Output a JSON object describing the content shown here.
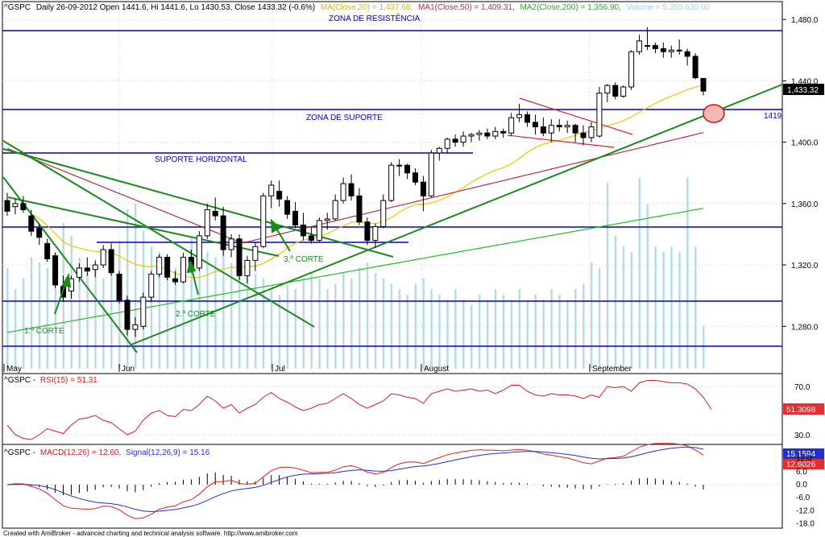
{
  "header": {
    "ticker": "^GSPC",
    "info": "Daily 26-09-2012 Open 1441.6, Hi 1441.6, Lo 1430.53, Close 1433.32 (-0.6%)",
    "ma20": "MA(Close,20) = 1,437.68,",
    "ma50": "MA1(Close,50) = 1,409.31,",
    "ma200": "MA2(Close,200) = 1,356.90,",
    "volume": "Volume = 5,355,620.00"
  },
  "annotations": {
    "resistance": "ZONA DE RESISTÊNCIA",
    "support": "ZONA DE SUPORTE",
    "horizontal_support": "SUPORTE HORIZONTAL",
    "cut1": "1.º CORTE",
    "cut2": "2.º CORTE",
    "cut3": "3.º CORTE",
    "level_1419": "1419"
  },
  "price_tag": "1,433.32",
  "rsi": {
    "title_ticker": "^GSPC -",
    "title_ind": "RSI(15) = 51.31",
    "tag": "51.3098",
    "ticks": [
      "70.0",
      "30.0"
    ]
  },
  "macd": {
    "title_ticker": "^GSPC -",
    "title_macd": "MACD(12,26) = 12.60,",
    "title_signal": "Signal(12,26,9) = 15.16",
    "tag_signal": "15.1594",
    "tag_macd": "12.6026",
    "ticks": [
      "12.0",
      "6.0",
      "0.0",
      "-6.0",
      "-12.0",
      "-18.0"
    ]
  },
  "footer": "Created with AmiBroker - advanced charting and technical analysis software. http://www.amibroker.com",
  "colors": {
    "up": "#ffffff",
    "down": "#000000",
    "ma20": "#e6c800",
    "ma50": "#b03040",
    "ma200": "#22c022",
    "volume": "#b6dcea",
    "level": "#0000cc",
    "trend": "#1a8a1a",
    "wedge": "#e02020",
    "macd": "#e02020",
    "signal": "#2030d0",
    "rsi": "#d02020"
  },
  "chart_data": {
    "type": "candlestick",
    "months": [
      "May",
      "Jun",
      "Jul",
      "August",
      "September"
    ],
    "y_ticks": [
      "1,480.0",
      "1,440.0",
      "1,400.0",
      "1,360.0",
      "1,320.0",
      "1,280.0"
    ],
    "ylim": [
      1262,
      1492
    ],
    "levels": [
      1474,
      1419,
      1391,
      1342,
      1335,
      1297,
      1263
    ],
    "candles": [
      {
        "o": 1362,
        "h": 1367,
        "l": 1352,
        "c": 1355
      },
      {
        "o": 1358,
        "h": 1363,
        "l": 1353,
        "c": 1360
      },
      {
        "o": 1360,
        "h": 1365,
        "l": 1354,
        "c": 1356
      },
      {
        "o": 1352,
        "h": 1356,
        "l": 1339,
        "c": 1342
      },
      {
        "o": 1344,
        "h": 1347,
        "l": 1333,
        "c": 1338
      },
      {
        "o": 1334,
        "h": 1337,
        "l": 1322,
        "c": 1324
      },
      {
        "o": 1326,
        "h": 1328,
        "l": 1305,
        "c": 1307
      },
      {
        "o": 1306,
        "h": 1313,
        "l": 1296,
        "c": 1299
      },
      {
        "o": 1303,
        "h": 1313,
        "l": 1298,
        "c": 1311
      },
      {
        "o": 1312,
        "h": 1321,
        "l": 1309,
        "c": 1318
      },
      {
        "o": 1318,
        "h": 1325,
        "l": 1313,
        "c": 1316
      },
      {
        "o": 1317,
        "h": 1323,
        "l": 1312,
        "c": 1320
      },
      {
        "o": 1320,
        "h": 1333,
        "l": 1318,
        "c": 1330
      },
      {
        "o": 1330,
        "h": 1334,
        "l": 1313,
        "c": 1315
      },
      {
        "o": 1314,
        "h": 1316,
        "l": 1295,
        "c": 1297
      },
      {
        "o": 1297,
        "h": 1300,
        "l": 1274,
        "c": 1278
      },
      {
        "o": 1278,
        "h": 1286,
        "l": 1273,
        "c": 1281
      },
      {
        "o": 1280,
        "h": 1302,
        "l": 1278,
        "c": 1299
      },
      {
        "o": 1299,
        "h": 1316,
        "l": 1296,
        "c": 1314
      },
      {
        "o": 1314,
        "h": 1327,
        "l": 1312,
        "c": 1325
      },
      {
        "o": 1325,
        "h": 1327,
        "l": 1310,
        "c": 1312
      },
      {
        "o": 1311,
        "h": 1316,
        "l": 1307,
        "c": 1309
      },
      {
        "o": 1309,
        "h": 1328,
        "l": 1308,
        "c": 1325
      },
      {
        "o": 1325,
        "h": 1330,
        "l": 1315,
        "c": 1318
      },
      {
        "o": 1318,
        "h": 1342,
        "l": 1316,
        "c": 1339
      },
      {
        "o": 1339,
        "h": 1360,
        "l": 1337,
        "c": 1356
      },
      {
        "o": 1355,
        "h": 1364,
        "l": 1349,
        "c": 1352
      },
      {
        "o": 1352,
        "h": 1358,
        "l": 1326,
        "c": 1330
      },
      {
        "o": 1330,
        "h": 1340,
        "l": 1325,
        "c": 1337
      },
      {
        "o": 1337,
        "h": 1340,
        "l": 1310,
        "c": 1313
      },
      {
        "o": 1313,
        "h": 1326,
        "l": 1308,
        "c": 1323
      },
      {
        "o": 1323,
        "h": 1335,
        "l": 1316,
        "c": 1332
      },
      {
        "o": 1332,
        "h": 1367,
        "l": 1331,
        "c": 1365
      },
      {
        "o": 1365,
        "h": 1375,
        "l": 1357,
        "c": 1372
      },
      {
        "o": 1368,
        "h": 1375,
        "l": 1358,
        "c": 1363
      },
      {
        "o": 1362,
        "h": 1365,
        "l": 1350,
        "c": 1353
      },
      {
        "o": 1355,
        "h": 1361,
        "l": 1344,
        "c": 1346
      },
      {
        "o": 1346,
        "h": 1354,
        "l": 1336,
        "c": 1339
      },
      {
        "o": 1339,
        "h": 1345,
        "l": 1334,
        "c": 1336
      },
      {
        "o": 1336,
        "h": 1351,
        "l": 1335,
        "c": 1349
      },
      {
        "o": 1349,
        "h": 1354,
        "l": 1343,
        "c": 1350
      },
      {
        "o": 1350,
        "h": 1366,
        "l": 1349,
        "c": 1362
      },
      {
        "o": 1362,
        "h": 1377,
        "l": 1360,
        "c": 1373
      },
      {
        "o": 1373,
        "h": 1379,
        "l": 1362,
        "c": 1365
      },
      {
        "o": 1365,
        "h": 1370,
        "l": 1346,
        "c": 1348
      },
      {
        "o": 1348,
        "h": 1351,
        "l": 1333,
        "c": 1336
      },
      {
        "o": 1336,
        "h": 1347,
        "l": 1331,
        "c": 1345
      },
      {
        "o": 1345,
        "h": 1366,
        "l": 1344,
        "c": 1362
      },
      {
        "o": 1362,
        "h": 1387,
        "l": 1361,
        "c": 1385
      },
      {
        "o": 1385,
        "h": 1389,
        "l": 1378,
        "c": 1385
      },
      {
        "o": 1385,
        "h": 1386,
        "l": 1376,
        "c": 1380
      },
      {
        "o": 1380,
        "h": 1383,
        "l": 1372,
        "c": 1374
      },
      {
        "o": 1374,
        "h": 1378,
        "l": 1355,
        "c": 1365
      },
      {
        "o": 1365,
        "h": 1395,
        "l": 1364,
        "c": 1393
      },
      {
        "o": 1393,
        "h": 1397,
        "l": 1388,
        "c": 1396
      },
      {
        "o": 1396,
        "h": 1403,
        "l": 1393,
        "c": 1402
      },
      {
        "o": 1402,
        "h": 1405,
        "l": 1397,
        "c": 1400
      },
      {
        "o": 1400,
        "h": 1407,
        "l": 1397,
        "c": 1404
      },
      {
        "o": 1404,
        "h": 1406,
        "l": 1400,
        "c": 1405
      },
      {
        "o": 1405,
        "h": 1408,
        "l": 1401,
        "c": 1406
      },
      {
        "o": 1406,
        "h": 1409,
        "l": 1402,
        "c": 1404
      },
      {
        "o": 1404,
        "h": 1410,
        "l": 1402,
        "c": 1407
      },
      {
        "o": 1407,
        "h": 1409,
        "l": 1403,
        "c": 1406
      },
      {
        "o": 1406,
        "h": 1419,
        "l": 1404,
        "c": 1416
      },
      {
        "o": 1416,
        "h": 1425,
        "l": 1413,
        "c": 1418
      },
      {
        "o": 1418,
        "h": 1420,
        "l": 1410,
        "c": 1413
      },
      {
        "o": 1413,
        "h": 1418,
        "l": 1405,
        "c": 1410
      },
      {
        "o": 1410,
        "h": 1416,
        "l": 1404,
        "c": 1406
      },
      {
        "o": 1406,
        "h": 1415,
        "l": 1400,
        "c": 1411
      },
      {
        "o": 1411,
        "h": 1415,
        "l": 1407,
        "c": 1410
      },
      {
        "o": 1410,
        "h": 1414,
        "l": 1406,
        "c": 1411
      },
      {
        "o": 1411,
        "h": 1412,
        "l": 1400,
        "c": 1406
      },
      {
        "o": 1406,
        "h": 1411,
        "l": 1398,
        "c": 1403
      },
      {
        "o": 1403,
        "h": 1413,
        "l": 1400,
        "c": 1410
      },
      {
        "o": 1404,
        "h": 1436,
        "l": 1403,
        "c": 1432
      },
      {
        "o": 1432,
        "h": 1438,
        "l": 1426,
        "c": 1437
      },
      {
        "o": 1437,
        "h": 1439,
        "l": 1428,
        "c": 1430
      },
      {
        "o": 1430,
        "h": 1437,
        "l": 1429,
        "c": 1436
      },
      {
        "o": 1436,
        "h": 1460,
        "l": 1434,
        "c": 1459
      },
      {
        "o": 1459,
        "h": 1470,
        "l": 1457,
        "c": 1466
      },
      {
        "o": 1463,
        "h": 1475,
        "l": 1460,
        "c": 1463
      },
      {
        "o": 1463,
        "h": 1465,
        "l": 1458,
        "c": 1461
      },
      {
        "o": 1461,
        "h": 1465,
        "l": 1455,
        "c": 1459
      },
      {
        "o": 1459,
        "h": 1463,
        "l": 1455,
        "c": 1460
      },
      {
        "o": 1460,
        "h": 1467,
        "l": 1457,
        "c": 1460
      },
      {
        "o": 1459,
        "h": 1461,
        "l": 1450,
        "c": 1456
      },
      {
        "o": 1456,
        "h": 1458,
        "l": 1441,
        "c": 1442
      },
      {
        "o": 1441.6,
        "h": 1441.6,
        "l": 1430.53,
        "c": 1433.32
      }
    ],
    "volume": [
      0.38,
      0.3,
      0.34,
      0.42,
      0.4,
      0.38,
      0.44,
      0.55,
      0.5,
      0.42,
      0.36,
      0.4,
      0.34,
      0.38,
      0.48,
      0.6,
      0.62,
      0.52,
      0.46,
      0.44,
      0.4,
      0.38,
      0.42,
      0.5,
      0.48,
      0.44,
      0.42,
      0.46,
      0.4,
      0.42,
      0.38,
      0.36,
      0.34,
      0.3,
      0.28,
      0.32,
      0.3,
      0.34,
      0.36,
      0.34,
      0.3,
      0.32,
      0.36,
      0.34,
      0.38,
      0.4,
      0.36,
      0.34,
      0.32,
      0.3,
      0.28,
      0.32,
      0.34,
      0.3,
      0.28,
      0.26,
      0.3,
      0.26,
      0.24,
      0.28,
      0.26,
      0.3,
      0.28,
      0.26,
      0.3,
      0.26,
      0.28,
      0.26,
      0.3,
      0.28,
      0.26,
      0.3,
      0.32,
      0.4,
      0.38,
      0.7,
      0.5,
      0.46,
      0.44,
      0.72,
      0.62,
      0.46,
      0.44,
      0.46,
      0.44,
      0.72,
      0.46,
      0.16
    ],
    "rsi": [
      38,
      30,
      27,
      26,
      30,
      35,
      33,
      31,
      38,
      43,
      44,
      46,
      42,
      40,
      35,
      30,
      33,
      42,
      48,
      50,
      46,
      45,
      51,
      50,
      55,
      62,
      58,
      52,
      55,
      48,
      52,
      55,
      61,
      65,
      60,
      57,
      53,
      50,
      52,
      55,
      56,
      60,
      64,
      60,
      55,
      52,
      55,
      58,
      64,
      63,
      61,
      60,
      56,
      64,
      66,
      68,
      66,
      67,
      68,
      66,
      67,
      64,
      67,
      71,
      71,
      66,
      63,
      62,
      64,
      63,
      63,
      62,
      60,
      63,
      61,
      70,
      69,
      70,
      66,
      73,
      75,
      75,
      74,
      73,
      73,
      72,
      68,
      61,
      51
    ]
  }
}
